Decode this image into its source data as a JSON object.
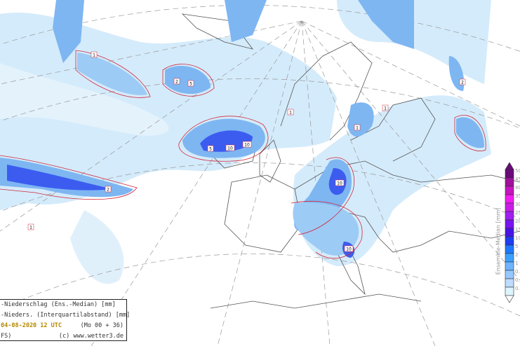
{
  "legend": {
    "line1": "-Niederschlag (Ens.-Median) [mm]",
    "line2": "-Nieders. (Interquartilabstand) [mm]",
    "date": "04-08-2020  12 UTC",
    "run": "(Mo 00 + 36)",
    "model": "FS)",
    "credit": "(c) www.wetter3.de"
  },
  "colorbar": {
    "title": "Ensemble-Median [mm]",
    "labels": [
      "50",
      "45",
      "40",
      "35",
      "30",
      "25",
      "20",
      "15",
      "10",
      "5",
      "2",
      "1",
      "0.",
      "0.",
      "0."
    ],
    "colors": [
      "#6a0a7a",
      "#a0109c",
      "#c814c0",
      "#f01cf0",
      "#c81ee6",
      "#a01ef0",
      "#7814f0",
      "#4614e6",
      "#1e3cf0",
      "#1e78ff",
      "#3ca0ff",
      "#6eb4ff",
      "#96c8ff",
      "#bedcff",
      "#dcf5ff"
    ]
  },
  "map_labels": [
    "1",
    "2",
    "5",
    "10",
    "10",
    "10",
    "10",
    "1",
    "2",
    "1",
    "1",
    "5",
    "2",
    "1"
  ],
  "colors": {
    "shade_light": "#cfe8fb",
    "shade_mid": "#7eb6f2",
    "shade_blue": "#3c5cf0",
    "contour": "#d2283c",
    "coast": "#555555"
  }
}
